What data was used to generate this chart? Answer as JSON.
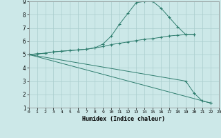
{
  "xlabel": "Humidex (Indice chaleur)",
  "x_values": [
    0,
    1,
    2,
    3,
    4,
    5,
    6,
    7,
    8,
    9,
    10,
    11,
    12,
    13,
    14,
    15,
    16,
    17,
    18,
    19,
    20,
    21,
    22,
    23
  ],
  "line1_x": [
    0,
    1,
    2,
    3,
    4,
    5,
    6,
    7,
    8,
    9,
    10,
    11,
    12,
    13,
    14,
    15,
    16,
    17,
    18,
    19,
    20
  ],
  "line1_y": [
    5.0,
    5.05,
    5.1,
    5.2,
    5.25,
    5.3,
    5.35,
    5.4,
    5.5,
    5.8,
    6.4,
    7.3,
    8.1,
    8.9,
    9.0,
    9.0,
    8.5,
    7.8,
    7.1,
    6.5,
    6.5
  ],
  "line2_x": [
    0,
    1,
    2,
    3,
    4,
    5,
    6,
    7,
    8,
    9,
    10,
    11,
    12,
    13,
    14,
    15,
    16,
    17,
    18,
    19,
    20
  ],
  "line2_y": [
    5.0,
    5.05,
    5.1,
    5.2,
    5.25,
    5.3,
    5.35,
    5.4,
    5.5,
    5.6,
    5.75,
    5.85,
    5.95,
    6.05,
    6.15,
    6.2,
    6.3,
    6.4,
    6.45,
    6.5,
    6.5
  ],
  "line3_x": [
    0,
    19,
    20,
    21,
    22
  ],
  "line3_y": [
    5.0,
    3.0,
    2.1,
    1.5,
    1.35
  ],
  "line4_x": [
    0,
    22
  ],
  "line4_y": [
    5.0,
    1.35
  ],
  "ylim": [
    1,
    9
  ],
  "xlim": [
    0,
    23
  ],
  "yticks": [
    1,
    2,
    3,
    4,
    5,
    6,
    7,
    8,
    9
  ],
  "xticks": [
    0,
    1,
    2,
    3,
    4,
    5,
    6,
    7,
    8,
    9,
    10,
    11,
    12,
    13,
    14,
    15,
    16,
    17,
    18,
    19,
    20,
    21,
    22,
    23
  ],
  "line_color": "#2e7d6e",
  "bg_color": "#cce8e8",
  "grid_color": "#aacece"
}
